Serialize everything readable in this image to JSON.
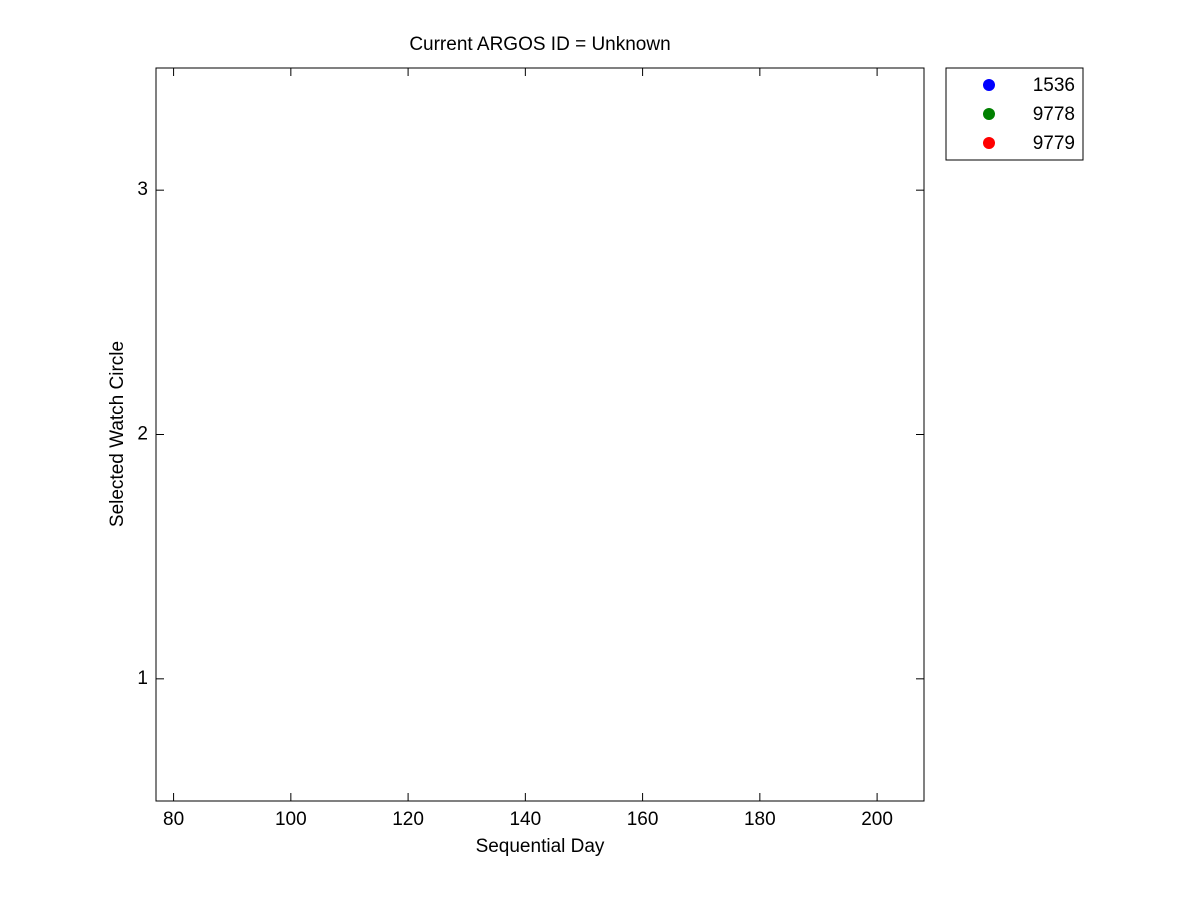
{
  "chart_data": {
    "type": "scatter",
    "title": "Current ARGOS ID = Unknown",
    "x_label": "Sequential Day",
    "y_label": "Selected Watch Circle",
    "xlim": [
      77,
      208
    ],
    "xticks": [
      80,
      100,
      120,
      140,
      160,
      180,
      200
    ],
    "ylim": [
      0.5,
      3.5
    ],
    "yticks": [
      1,
      2,
      3
    ],
    "legend_position": "outside-right",
    "series": [
      {
        "name": "1536",
        "color": "#0000ff",
        "x": [],
        "values": []
      },
      {
        "name": "9778",
        "color": "#008000",
        "x": [],
        "values": []
      },
      {
        "name": "9779",
        "color": "#ff0000",
        "x": [],
        "values": []
      }
    ]
  }
}
